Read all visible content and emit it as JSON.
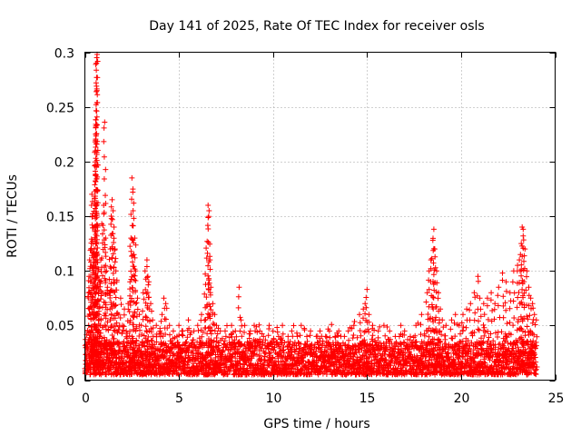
{
  "chart_data": {
    "type": "scatter",
    "title": "Day 141 of 2025, Rate Of TEC Index for receiver osls",
    "xlabel": "GPS time / hours",
    "ylabel": "ROTI / TECUs",
    "xlim": [
      0,
      25
    ],
    "ylim": [
      0,
      0.3
    ],
    "x_ticks": [
      0,
      5,
      10,
      15,
      20,
      25
    ],
    "x_tick_labels": [
      "0",
      "5",
      "10",
      "15",
      "20",
      "25"
    ],
    "y_ticks": [
      0,
      0.05,
      0.1,
      0.15,
      0.2,
      0.25,
      0.3
    ],
    "y_tick_labels": [
      "0",
      "0.05",
      "0.1",
      "0.15",
      "0.2",
      "0.25",
      "0.3"
    ],
    "grid": true,
    "marker": "+",
    "color": "#ff0000",
    "series": [
      {
        "name": "ROTI",
        "points": [
          [
            0.05,
            0.018
          ],
          [
            0.1,
            0.03
          ],
          [
            0.15,
            0.045
          ],
          [
            0.2,
            0.08
          ],
          [
            0.22,
            0.095
          ],
          [
            0.25,
            0.11
          ],
          [
            0.3,
            0.09
          ],
          [
            0.32,
            0.12
          ],
          [
            0.35,
            0.16
          ],
          [
            0.37,
            0.17
          ],
          [
            0.4,
            0.15
          ],
          [
            0.42,
            0.125
          ],
          [
            0.45,
            0.105
          ],
          [
            0.48,
            0.07
          ],
          [
            0.5,
            0.12
          ],
          [
            0.52,
            0.196
          ],
          [
            0.55,
            0.218
          ],
          [
            0.57,
            0.225
          ],
          [
            0.58,
            0.234
          ],
          [
            0.6,
            0.252
          ],
          [
            0.6,
            0.272
          ],
          [
            0.62,
            0.29
          ],
          [
            0.63,
            0.295
          ],
          [
            0.65,
            0.298
          ],
          [
            0.68,
            0.14
          ],
          [
            0.7,
            0.1
          ],
          [
            0.72,
            0.08
          ],
          [
            0.75,
            0.06
          ],
          [
            0.8,
            0.09
          ],
          [
            0.85,
            0.11
          ],
          [
            0.9,
            0.143
          ],
          [
            1.0,
            0.16
          ],
          [
            1.05,
            0.236
          ],
          [
            1.1,
            0.13
          ],
          [
            1.15,
            0.1
          ],
          [
            1.2,
            0.085
          ],
          [
            1.3,
            0.08
          ],
          [
            1.35,
            0.12
          ],
          [
            1.4,
            0.15
          ],
          [
            1.45,
            0.165
          ],
          [
            1.5,
            0.155
          ],
          [
            1.55,
            0.14
          ],
          [
            1.6,
            0.12
          ],
          [
            1.65,
            0.1
          ],
          [
            1.7,
            0.09
          ],
          [
            1.8,
            0.06
          ],
          [
            1.9,
            0.075
          ],
          [
            2.0,
            0.05
          ],
          [
            2.1,
            0.065
          ],
          [
            2.2,
            0.045
          ],
          [
            2.3,
            0.07
          ],
          [
            2.4,
            0.09
          ],
          [
            2.45,
            0.13
          ],
          [
            2.5,
            0.185
          ],
          [
            2.55,
            0.172
          ],
          [
            2.6,
            0.148
          ],
          [
            2.65,
            0.13
          ],
          [
            2.7,
            0.1
          ],
          [
            2.8,
            0.075
          ],
          [
            2.9,
            0.06
          ],
          [
            3.0,
            0.05
          ],
          [
            3.1,
            0.08
          ],
          [
            3.2,
            0.1
          ],
          [
            3.3,
            0.11
          ],
          [
            3.35,
            0.095
          ],
          [
            3.4,
            0.09
          ],
          [
            3.5,
            0.07
          ],
          [
            3.6,
            0.055
          ],
          [
            3.8,
            0.05
          ],
          [
            4.0,
            0.045
          ],
          [
            4.1,
            0.06
          ],
          [
            4.2,
            0.075
          ],
          [
            4.3,
            0.07
          ],
          [
            4.5,
            0.05
          ],
          [
            4.7,
            0.045
          ],
          [
            4.9,
            0.04
          ],
          [
            5.0,
            0.05
          ],
          [
            5.2,
            0.045
          ],
          [
            5.5,
            0.055
          ],
          [
            5.8,
            0.045
          ],
          [
            6.0,
            0.05
          ],
          [
            6.2,
            0.06
          ],
          [
            6.4,
            0.097
          ],
          [
            6.5,
            0.127
          ],
          [
            6.55,
            0.16
          ],
          [
            6.6,
            0.155
          ],
          [
            6.65,
            0.11
          ],
          [
            6.7,
            0.085
          ],
          [
            6.8,
            0.07
          ],
          [
            6.9,
            0.06
          ],
          [
            7.0,
            0.05
          ],
          [
            7.2,
            0.045
          ],
          [
            7.5,
            0.04
          ],
          [
            7.8,
            0.05
          ],
          [
            8.0,
            0.045
          ],
          [
            8.2,
            0.085
          ],
          [
            8.3,
            0.055
          ],
          [
            8.5,
            0.05
          ],
          [
            8.8,
            0.045
          ],
          [
            9.0,
            0.05
          ],
          [
            9.3,
            0.045
          ],
          [
            9.5,
            0.04
          ],
          [
            9.8,
            0.05
          ],
          [
            10.0,
            0.045
          ],
          [
            10.3,
            0.04
          ],
          [
            10.5,
            0.05
          ],
          [
            10.8,
            0.04
          ],
          [
            11.0,
            0.045
          ],
          [
            11.3,
            0.04
          ],
          [
            11.5,
            0.05
          ],
          [
            11.8,
            0.04
          ],
          [
            12.0,
            0.045
          ],
          [
            12.3,
            0.04
          ],
          [
            12.5,
            0.045
          ],
          [
            12.8,
            0.04
          ],
          [
            13.0,
            0.045
          ],
          [
            13.3,
            0.04
          ],
          [
            13.5,
            0.045
          ],
          [
            13.8,
            0.04
          ],
          [
            14.0,
            0.045
          ],
          [
            14.3,
            0.05
          ],
          [
            14.6,
            0.06
          ],
          [
            14.8,
            0.065
          ],
          [
            14.9,
            0.07
          ],
          [
            15.0,
            0.083
          ],
          [
            15.1,
            0.06
          ],
          [
            15.3,
            0.05
          ],
          [
            15.6,
            0.045
          ],
          [
            15.9,
            0.05
          ],
          [
            16.2,
            0.045
          ],
          [
            16.5,
            0.04
          ],
          [
            16.8,
            0.05
          ],
          [
            17.0,
            0.045
          ],
          [
            17.3,
            0.04
          ],
          [
            17.6,
            0.05
          ],
          [
            17.9,
            0.06
          ],
          [
            18.2,
            0.08
          ],
          [
            18.3,
            0.1
          ],
          [
            18.4,
            0.11
          ],
          [
            18.5,
            0.128
          ],
          [
            18.55,
            0.138
          ],
          [
            18.6,
            0.12
          ],
          [
            18.7,
            0.1
          ],
          [
            18.8,
            0.08
          ],
          [
            18.9,
            0.065
          ],
          [
            19.0,
            0.055
          ],
          [
            19.2,
            0.05
          ],
          [
            19.5,
            0.055
          ],
          [
            19.7,
            0.06
          ],
          [
            19.9,
            0.05
          ],
          [
            20.1,
            0.06
          ],
          [
            20.3,
            0.065
          ],
          [
            20.5,
            0.07
          ],
          [
            20.7,
            0.08
          ],
          [
            20.9,
            0.095
          ],
          [
            21.0,
            0.075
          ],
          [
            21.2,
            0.07
          ],
          [
            21.4,
            0.075
          ],
          [
            21.6,
            0.08
          ],
          [
            21.8,
            0.07
          ],
          [
            22.0,
            0.085
          ],
          [
            22.2,
            0.098
          ],
          [
            22.4,
            0.09
          ],
          [
            22.6,
            0.08
          ],
          [
            22.8,
            0.1
          ],
          [
            23.0,
            0.105
          ],
          [
            23.1,
            0.11
          ],
          [
            23.2,
            0.125
          ],
          [
            23.25,
            0.14
          ],
          [
            23.3,
            0.138
          ],
          [
            23.4,
            0.12
          ],
          [
            23.5,
            0.1
          ],
          [
            23.6,
            0.085
          ],
          [
            23.7,
            0.075
          ],
          [
            23.8,
            0.07
          ],
          [
            23.9,
            0.06
          ],
          [
            24.0,
            0.055
          ]
        ]
      }
    ],
    "baseline_band": {
      "description_values": {
        "typical_low": 0.005,
        "typical_high": 0.035,
        "hours": [
          0,
          24
        ],
        "samples_per_hour": 130
      }
    }
  }
}
